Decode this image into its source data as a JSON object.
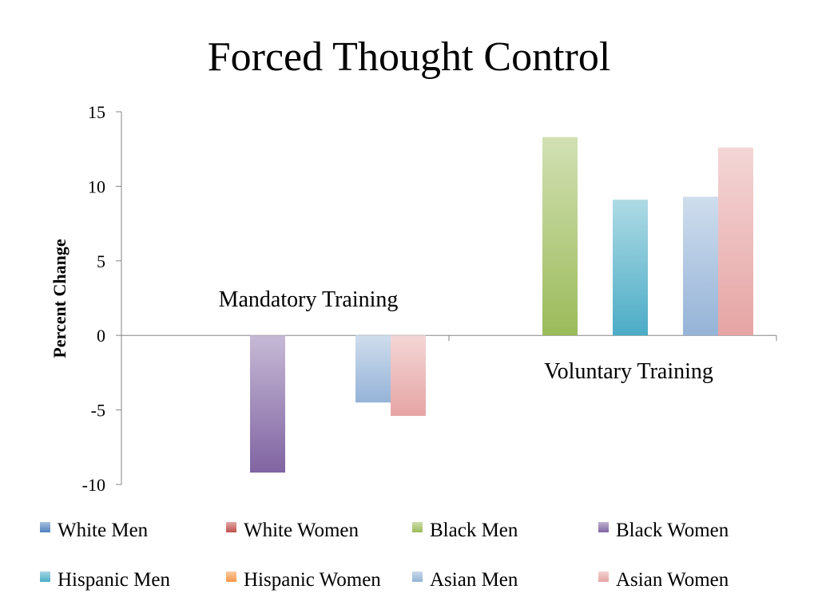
{
  "chart_data": {
    "type": "bar",
    "title": "Forced Thought Control",
    "ylabel": "Percent Change",
    "xlabel": "",
    "ylim": [
      -10,
      15
    ],
    "yticks": [
      15,
      10,
      5,
      0,
      -5,
      -10
    ],
    "grid": false,
    "legend_position": "bottom",
    "categories": [
      "Mandatory Training",
      "Voluntary Training"
    ],
    "series": [
      {
        "name": "White Men",
        "color": "#4F81BD",
        "values": [
          0,
          0
        ]
      },
      {
        "name": "White Women",
        "color": "#C0504D",
        "values": [
          0,
          0
        ]
      },
      {
        "name": "Black Men",
        "color": "#9BBB59",
        "values": [
          0,
          13.3
        ]
      },
      {
        "name": "Black Women",
        "color": "#8064A2",
        "values": [
          -9.2,
          0
        ]
      },
      {
        "name": "Hispanic Men",
        "color": "#4BACC6",
        "values": [
          0,
          9.1
        ]
      },
      {
        "name": "Hispanic Women",
        "color": "#F79646",
        "values": [
          0,
          0
        ]
      },
      {
        "name": "Asian Men",
        "color": "#95B3D7",
        "values": [
          -4.5,
          9.3
        ]
      },
      {
        "name": "Asian Women",
        "color": "#E6A4A4",
        "values": [
          -5.4,
          12.6
        ]
      }
    ]
  }
}
